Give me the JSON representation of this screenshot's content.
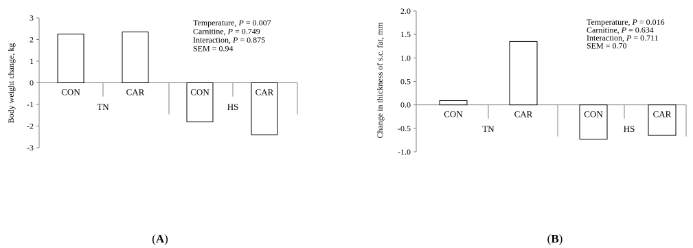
{
  "chart_data": [
    {
      "type": "bar",
      "panel_label": "(A)",
      "panel_letter": "A",
      "ylabel": "Body weight change, kg",
      "ylim": [
        -3,
        3
      ],
      "yticks": [
        "3",
        "2",
        "1",
        "0",
        "-1",
        "-2",
        "-3"
      ],
      "ytick_values": [
        3,
        2,
        1,
        0,
        -1,
        -2,
        -3
      ],
      "groups": [
        {
          "name": "TN",
          "categories": [
            "CON",
            "CAR"
          ],
          "values": [
            2.25,
            2.35
          ]
        },
        {
          "name": "HS",
          "categories": [
            "CON",
            "CAR"
          ],
          "values": [
            -1.8,
            -2.4
          ]
        }
      ],
      "annotations": [
        {
          "label": "Temperature, ",
          "p": "P",
          "eq": " = 0.007"
        },
        {
          "label": "Carnitine, ",
          "p": "P",
          "eq": " = 0.749"
        },
        {
          "label": "Interaction, ",
          "p": "P",
          "eq": " = 0.875"
        },
        {
          "label": "SEM = 0.94",
          "p": "",
          "eq": ""
        }
      ]
    },
    {
      "type": "bar",
      "panel_label": "(B)",
      "panel_letter": "B",
      "ylabel": "Change in thickness of s.c. fat, mm",
      "ylim": [
        -1.0,
        2.0
      ],
      "yticks": [
        "2.0",
        "1.5",
        "1.0",
        "0.5",
        "0.0",
        "-0.5",
        "-1.0"
      ],
      "ytick_values": [
        2.0,
        1.5,
        1.0,
        0.5,
        0.0,
        -0.5,
        -1.0
      ],
      "groups": [
        {
          "name": "TN",
          "categories": [
            "CON",
            "CAR"
          ],
          "values": [
            0.09,
            1.35
          ]
        },
        {
          "name": "HS",
          "categories": [
            "CON",
            "CAR"
          ],
          "values": [
            -0.73,
            -0.65
          ]
        }
      ],
      "annotations": [
        {
          "label": "Temperature, ",
          "p": "P",
          "eq": " = 0.016"
        },
        {
          "label": "Carnitine, ",
          "p": "P",
          "eq": " = 0.634"
        },
        {
          "label": "Interaction, ",
          "p": "P",
          "eq": " = 0.711"
        },
        {
          "label": "SEM = 0.70",
          "p": "",
          "eq": ""
        }
      ]
    }
  ]
}
